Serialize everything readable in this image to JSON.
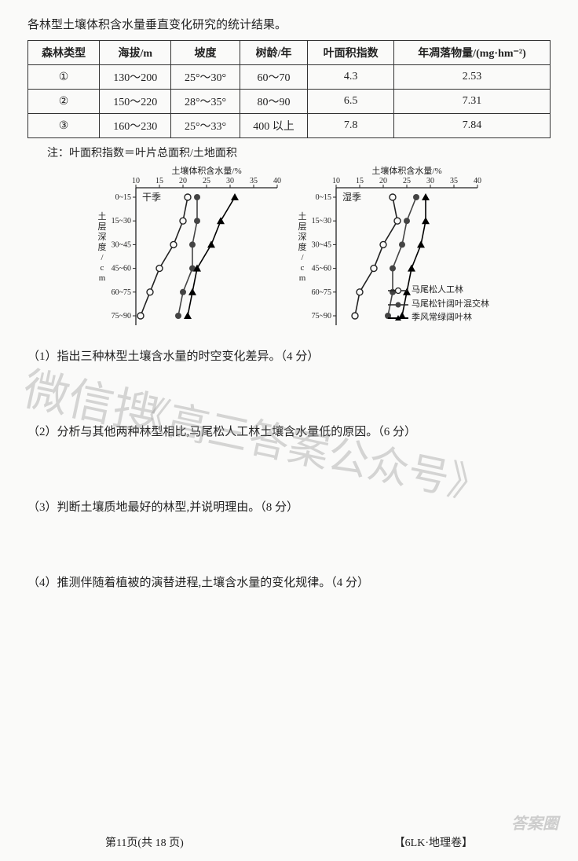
{
  "intro": "各林型土壤体积含水量垂直变化研究的统计结果。",
  "table": {
    "columns": [
      "森林类型",
      "海拔/m",
      "坡度",
      "树龄/年",
      "叶面积指数",
      "年凋落物量/(mg·hm⁻²)"
    ],
    "rows": [
      [
        "①",
        "130～200",
        "25°～30°",
        "60～70",
        "4.3",
        "2.53"
      ],
      [
        "②",
        "150～220",
        "28°～35°",
        "80～90",
        "6.5",
        "7.31"
      ],
      [
        "③",
        "160～230",
        "25°～33°",
        "400 以上",
        "7.8",
        "7.84"
      ]
    ]
  },
  "note": "注：叶面积指数＝叶片总面积/土地面积",
  "chart_common": {
    "x_title": "土壤体积含水量/%",
    "y_title": "土层深度/cm",
    "x_ticks": [
      10,
      15,
      20,
      25,
      30,
      35,
      40
    ],
    "y_labels": [
      "0~15",
      "15~30",
      "30~45",
      "45~60",
      "60~75",
      "75~90"
    ],
    "colors": {
      "series_a": "#222222",
      "series_b": "#444444",
      "series_c": "#000000",
      "grid": "#333",
      "bg": "#fafaf9"
    },
    "line_width": 1.6,
    "marker_size": 4
  },
  "chart_dry": {
    "title": "干季",
    "series": {
      "a": [
        21,
        20,
        18,
        15,
        13,
        11
      ],
      "b": [
        23,
        23,
        22,
        22,
        20,
        19
      ],
      "c": [
        31,
        28,
        26,
        23,
        22,
        21
      ]
    }
  },
  "chart_wet": {
    "title": "湿季",
    "series": {
      "a": [
        22,
        23,
        20,
        18,
        15,
        14
      ],
      "b": [
        27,
        25,
        24,
        22,
        22,
        21
      ],
      "c": [
        29,
        29,
        28,
        26,
        25,
        24
      ]
    }
  },
  "legend": {
    "a": "马尾松人工林",
    "b": "马尾松针阔叶混交林",
    "c": "季风常绿阔叶林"
  },
  "questions": {
    "q1": "（1）指出三种林型土壤含水量的时空变化差异。（4 分）",
    "q2": "（2）分析与其他两种林型相比,马尾松人工林土壤含水量低的原因。（6 分）",
    "q3": "（3）判断土壤质地最好的林型,并说明理由。（8 分）",
    "q4": "（4）推测伴随着植被的演替进程,土壤含水量的变化规律。（4 分）"
  },
  "footer": {
    "left": "第11页(共 18 页)",
    "right": "【6LK·地理卷】"
  },
  "watermark1": "微信搜",
  "watermark2": "《高三答案公众号》",
  "corner": "答案圈"
}
